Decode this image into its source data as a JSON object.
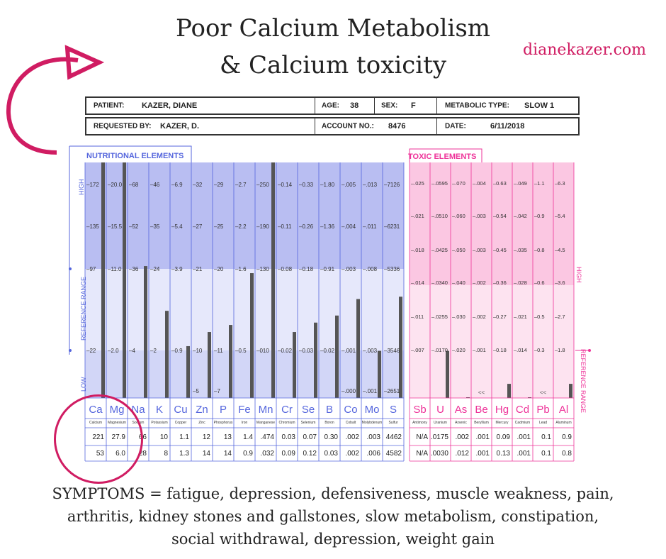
{
  "title_line1": "Poor Calcium Metabolism",
  "title_line2": "& Calcium toxicity",
  "site": "dianekazer.com",
  "header": {
    "patient_label": "PATIENT:",
    "patient": "KAZER, DIANE",
    "age_label": "AGE:",
    "age": "38",
    "sex_label": "SEX:",
    "sex": "F",
    "metabolic_label": "METABOLIC TYPE:",
    "metabolic": "SLOW 1",
    "requested_label": "REQUESTED BY:",
    "requested": "KAZER, D.",
    "account_label": "ACCOUNT NO.:",
    "account": "8476",
    "date_label": "DATE:",
    "date": "6/11/2018"
  },
  "colors": {
    "nutri": "#5566dd",
    "toxic": "#ee3399",
    "accent": "#d01c62",
    "bar": "#555555"
  },
  "chart_data": [
    {
      "type": "bar",
      "title": "NUTRITIONAL ELEMENTS",
      "ylabel_top": "HIGH",
      "ylabel_mid": "REFERENCE RANGE",
      "ylabel_bottom": "LOW",
      "categories": [
        "Ca",
        "Mg",
        "Na",
        "K",
        "Cu",
        "Zn",
        "P",
        "Fe",
        "Mn",
        "Cr",
        "Se",
        "B",
        "Co",
        "Mo",
        "S"
      ],
      "names": [
        "Calcium",
        "Magnesium",
        "Sodium",
        "Potassium",
        "Copper",
        "Zinc",
        "Phosphorus",
        "Iron",
        "Manganese",
        "Chromium",
        "Selenium",
        "Boron",
        "Cobalt",
        "Molybdenum",
        "Sulfur"
      ],
      "scale_labels": [
        [
          "172",
          "20.0",
          "68",
          "46",
          "6.9",
          "32",
          "29",
          "2.7",
          "250",
          "0.14",
          "0.33",
          "1.80",
          ".005",
          ".013",
          "7126"
        ],
        [
          "135",
          "15.5",
          "52",
          "35",
          "5.4",
          "27",
          "25",
          "2.2",
          "190",
          "0.11",
          "0.26",
          "1.36",
          ".004",
          ".011",
          "6231"
        ],
        [
          "97",
          "11.0",
          "36",
          "24",
          "3.9",
          "21",
          "20",
          "1.6",
          "130",
          "0.08",
          "0.18",
          "0.91",
          ".003",
          ".008",
          "5336"
        ],
        [
          "22",
          "2.0",
          "4",
          "2",
          "0.9",
          "10",
          "11",
          "0.5",
          "010",
          "0.02",
          "0.03",
          "0.02",
          ".001",
          ".003",
          "3546"
        ]
      ],
      "low_labels": [
        "",
        "",
        "",
        "",
        "",
        "5",
        "7",
        "",
        "",
        "",
        "",
        "",
        ".000",
        ".001",
        "2651"
      ],
      "values": [
        221,
        27.9,
        66,
        10,
        1.1,
        12,
        13,
        1.4,
        0.474,
        0.03,
        0.07,
        0.3,
        0.002,
        0.003,
        4462
      ],
      "bar_heights": [
        1.0,
        1.0,
        0.56,
        0.37,
        0.22,
        0.28,
        0.31,
        0.53,
        1.0,
        0.28,
        0.32,
        0.35,
        0.42,
        0.2,
        0.43
      ],
      "row1": [
        "221",
        "27.9",
        "66",
        "10",
        "1.1",
        "12",
        "13",
        "1.4",
        ".474",
        "0.03",
        "0.07",
        "0.30",
        ".002",
        ".003",
        "4462"
      ],
      "row2": [
        "53",
        "6.0",
        "28",
        "8",
        "1.3",
        "14",
        "14",
        "0.9",
        ".032",
        "0.09",
        "0.12",
        "0.03",
        ".002",
        ".006",
        "4582"
      ]
    },
    {
      "type": "bar",
      "title": "TOXIC ELEMENTS",
      "ylabel_high": "HIGH",
      "ylabel_ref": "REFERENCE RANGE",
      "categories": [
        "Sb",
        "U",
        "As",
        "Be",
        "Hg",
        "Cd",
        "Pb",
        "Al"
      ],
      "names": [
        "Antimony",
        "Uranium",
        "Arsenic",
        "Beryllium",
        "Mercury",
        "Cadmium",
        "Lead",
        "Aluminum"
      ],
      "scale_labels": [
        [
          ".025",
          ".0595",
          ".070",
          ".004",
          "0.63",
          ".049",
          "1.1",
          "6.3"
        ],
        [
          ".021",
          ".0510",
          ".060",
          ".003",
          "0.54",
          ".042",
          "0.9",
          "5.4"
        ],
        [
          ".018",
          ".0425",
          ".050",
          ".003",
          "0.45",
          ".035",
          "0.8",
          "4.5"
        ],
        [
          ".014",
          ".0340",
          ".040",
          ".002",
          "0.36",
          ".028",
          "0.6",
          "3.6"
        ],
        [
          ".011",
          ".0255",
          ".030",
          ".002",
          "0.27",
          ".021",
          "0.5",
          "2.7"
        ],
        [
          ".007",
          ".0170",
          ".020",
          ".001",
          "0.18",
          ".014",
          "0.3",
          "1.8"
        ]
      ],
      "below": [
        "",
        "",
        "",
        "<<",
        "",
        "",
        "<<",
        ""
      ],
      "values": [
        null,
        0.0175,
        0.002,
        0.001,
        0.09,
        0.001,
        0.1,
        0.9
      ],
      "bar_heights": [
        0,
        0.2,
        0.003,
        0,
        0.06,
        0.003,
        0,
        0.06
      ],
      "row1": [
        "N/A",
        ".0175",
        ".002",
        ".001",
        "0.09",
        ".001",
        "0.1",
        "0.9"
      ],
      "row2": [
        "N/A",
        ".0030",
        ".012",
        ".001",
        "0.13",
        ".001",
        "0.1",
        "0.8"
      ]
    }
  ],
  "symptoms": [
    "SYMPTOMS = fatigue, depression, defensiveness, muscle weakness, pain,",
    "arthritis, kidney stones and gallstones, slow metabolism, constipation,",
    "social withdrawal, depression, weight gain"
  ]
}
